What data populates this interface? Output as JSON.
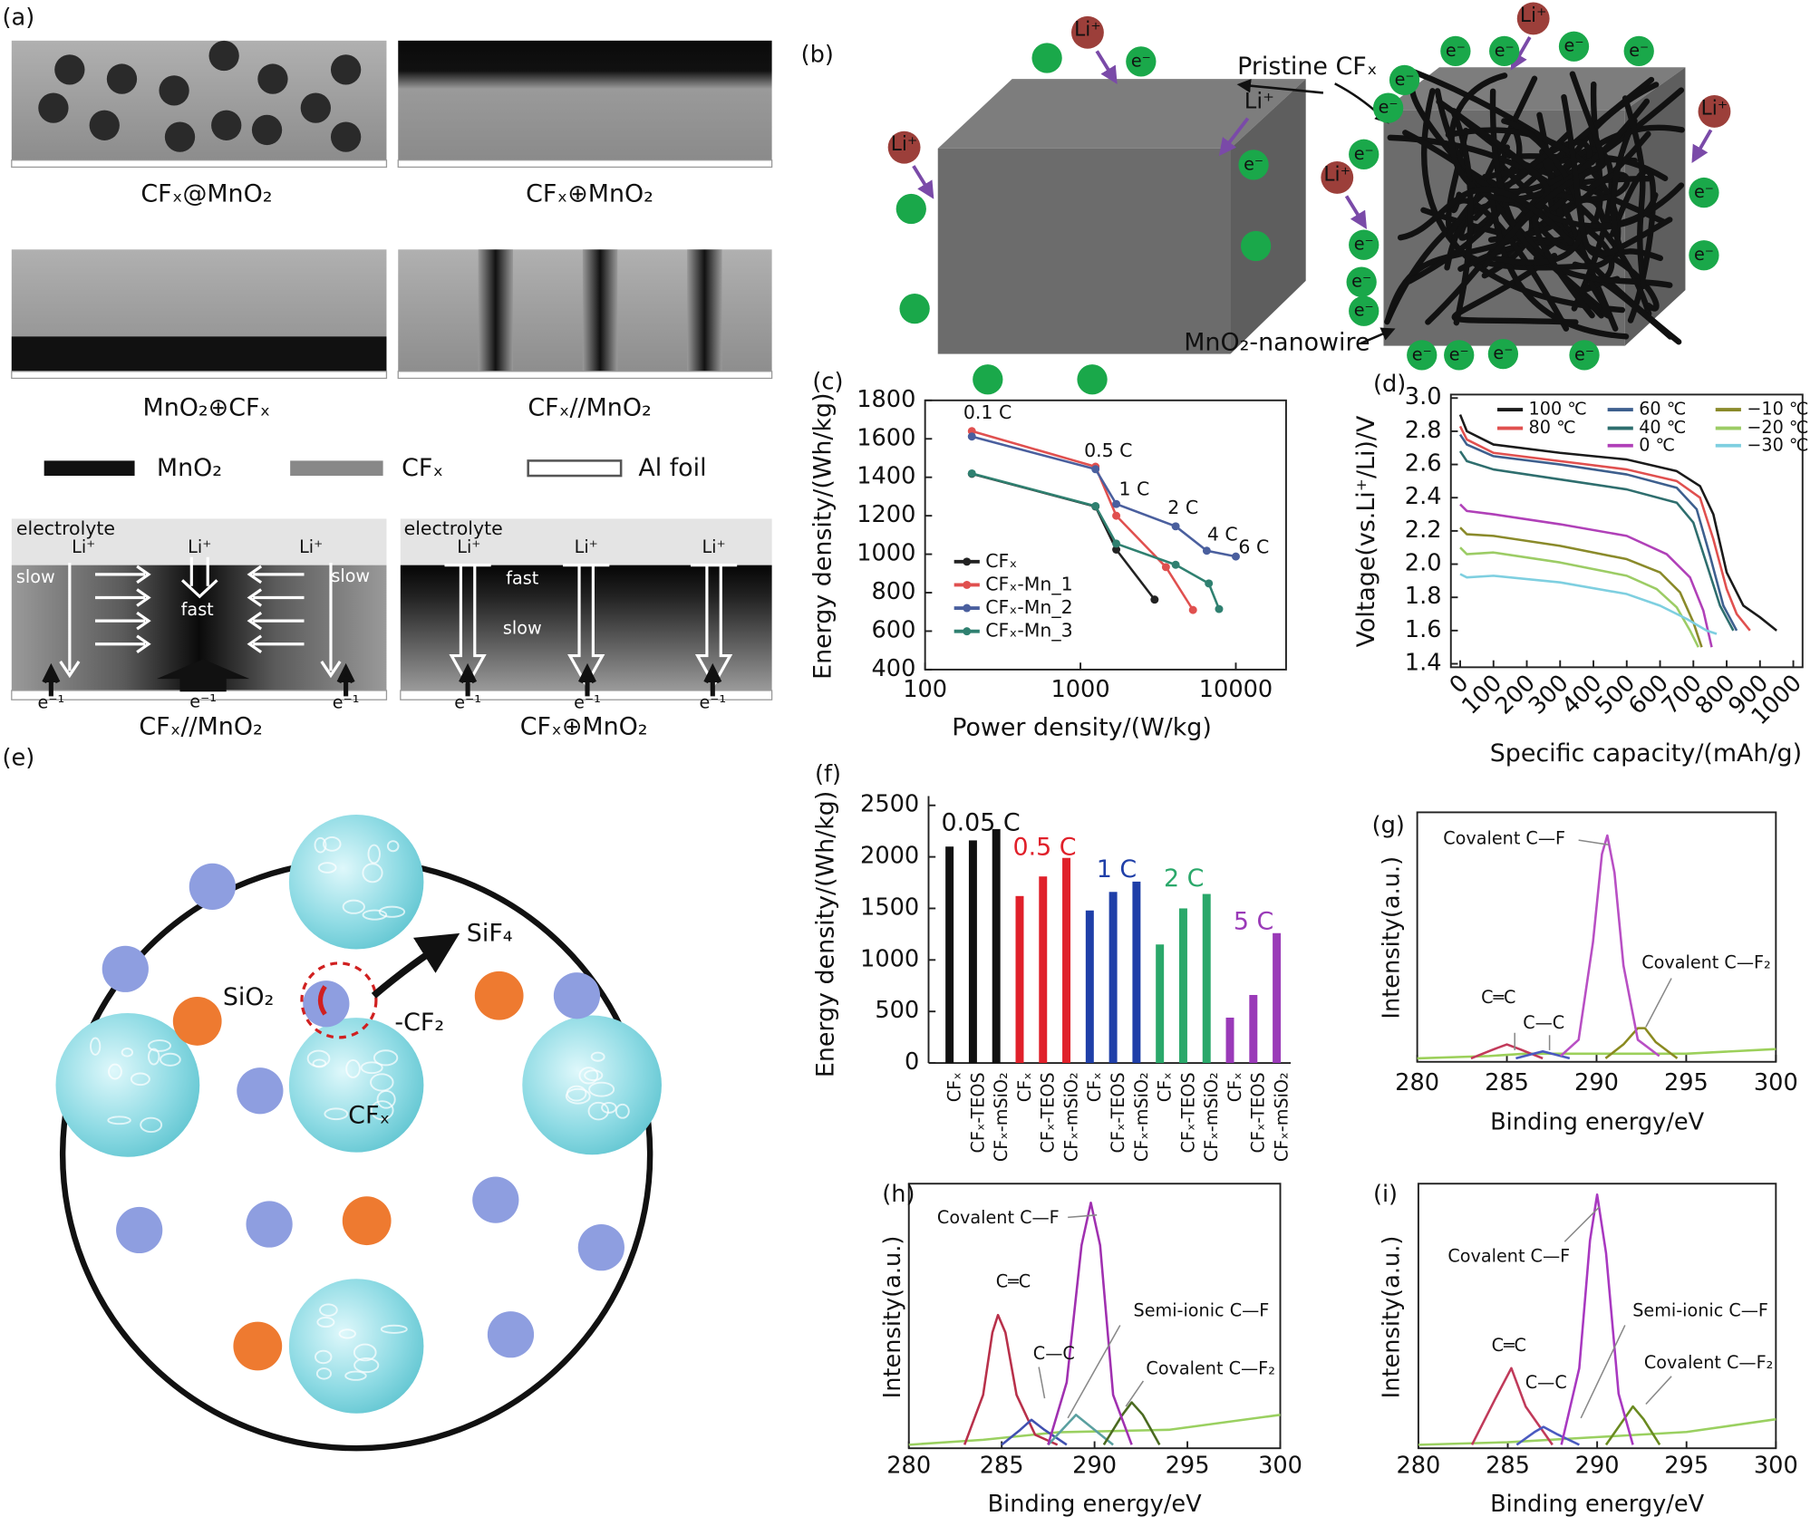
{
  "panels": {
    "a": {
      "label": "(a)",
      "captions": [
        "CFₓ@MnO₂",
        "CFₓ⊕MnO₂",
        "MnO₂⊕CFₓ",
        "CFₓ//MnO₂"
      ],
      "legend": [
        "MnO₂",
        "CFₓ",
        "Al foil"
      ],
      "left": {
        "texts": [
          "electrolyte",
          "Li⁺",
          "Li⁺",
          "Li⁺",
          "slow",
          "fast",
          "slow",
          "e⁻¹",
          "e⁻¹",
          "e⁻¹"
        ],
        "caption": "CFₓ//MnO₂"
      },
      "right": {
        "texts": [
          "electrolyte",
          "Li⁺",
          "Li⁺",
          "Li⁺",
          "fast",
          "slow",
          "e⁻¹",
          "e⁻¹",
          "e⁻¹"
        ],
        "caption": "CFₓ⊕MnO₂"
      }
    },
    "b": {
      "label": "(b)",
      "pristine": "Pristine CFₓ",
      "nanowire": "MnO₂-nanowire",
      "li_label": "Li⁺",
      "ions": [
        "Li⁺",
        "Li⁺",
        "Li⁺",
        "Li⁺",
        "Li⁺",
        "e⁻",
        "e⁻",
        "e⁻",
        "e⁻",
        "e⁻",
        "e⁻",
        "e⁻",
        "e⁻",
        "e⁻",
        "e⁻",
        "e⁻",
        "e⁻",
        "e⁻",
        "e⁻",
        "e⁻",
        "e⁻",
        "e⁻",
        "e⁻"
      ]
    },
    "e": {
      "label": "(e)",
      "texts": [
        "SiF₄",
        "SiO₂",
        "-CF₂",
        "CFₓ"
      ]
    }
  },
  "chart_data": [
    {
      "type": "line",
      "panel_label": "(c)",
      "x_label": "Power density/(W/kg)",
      "y_label": "Energy density/(Wh/kg)",
      "xscale": "log",
      "xlim": [
        100,
        20000
      ],
      "xticks": [
        100,
        1000,
        10000
      ],
      "ylim": [
        400,
        1800
      ],
      "yticks": [
        400,
        600,
        800,
        1000,
        1200,
        1400,
        1600,
        1800
      ],
      "markers": true,
      "legend": "lower left",
      "series": [
        {
          "name": "CFₓ",
          "color": "#222222",
          "x": [
            200,
            1250,
            1700,
            3000
          ],
          "values": [
            1418,
            1248,
            1024,
            764
          ]
        },
        {
          "name": "CFₓ-Mn_1",
          "color": "#e0504f",
          "x": [
            200,
            1250,
            1700,
            3550,
            5300
          ],
          "values": [
            1640,
            1455,
            1200,
            933,
            710
          ]
        },
        {
          "name": "CFₓ-Mn_2",
          "color": "#4a5f9e",
          "x": [
            200,
            1250,
            1700,
            4100,
            6500,
            10000
          ],
          "values": [
            1612,
            1442,
            1261,
            1145,
            1018,
            988
          ]
        },
        {
          "name": "CFₓ-Mn_3",
          "color": "#2f8070",
          "x": [
            200,
            1250,
            1700,
            4100,
            6700,
            7800
          ],
          "values": [
            1420,
            1250,
            1055,
            945,
            848,
            715
          ]
        }
      ],
      "annotations": [
        "0.1 C",
        "0.5 C",
        "1 C",
        "2 C",
        "4 C",
        "6 C"
      ]
    },
    {
      "type": "line",
      "panel_label": "(d)",
      "x_label": "Specific capacity/(mAh/g)",
      "y_label": "Voltage(vs.Li⁺/Li)/V",
      "xlim": [
        0,
        1000
      ],
      "xticks": [
        0,
        100,
        200,
        300,
        400,
        500,
        600,
        700,
        800,
        900,
        1000
      ],
      "ylim": [
        1.4,
        3.0
      ],
      "yticks": [
        1.4,
        1.6,
        1.8,
        {
          "value": 2,
          "label": "2.0"
        },
        2.2,
        2.4,
        2.6,
        2.8,
        {
          "value": 3,
          "label": "3.0"
        }
      ],
      "legend": "upper right",
      "series": [
        {
          "name": "100 ℃",
          "color": "#1a1a1a",
          "x": [
            0,
            20,
            100,
            300,
            500,
            650,
            720,
            760,
            800,
            850,
            900,
            950
          ],
          "values": [
            2.9,
            2.8,
            2.72,
            2.67,
            2.63,
            2.56,
            2.47,
            2.3,
            1.95,
            1.75,
            1.68,
            1.6
          ]
        },
        {
          "name": "80 ℃",
          "color": "#e0504f",
          "x": [
            0,
            20,
            100,
            300,
            500,
            650,
            720,
            760,
            800,
            830,
            870
          ],
          "values": [
            2.83,
            2.75,
            2.67,
            2.62,
            2.57,
            2.5,
            2.4,
            2.15,
            1.85,
            1.7,
            1.6
          ]
        },
        {
          "name": "60 ℃",
          "color": "#3d5f8e",
          "x": [
            0,
            20,
            100,
            300,
            500,
            650,
            710,
            750,
            790,
            830
          ],
          "values": [
            2.78,
            2.72,
            2.65,
            2.6,
            2.54,
            2.46,
            2.33,
            2.05,
            1.75,
            1.6
          ]
        },
        {
          "name": "40 ℃",
          "color": "#2e6e6e",
          "x": [
            0,
            20,
            100,
            300,
            500,
            650,
            700,
            740,
            780,
            820
          ],
          "values": [
            2.68,
            2.62,
            2.57,
            2.51,
            2.45,
            2.37,
            2.25,
            2.0,
            1.75,
            1.6
          ]
        },
        {
          "name": "0 ℃",
          "color": "#b040b8",
          "x": [
            0,
            20,
            100,
            300,
            500,
            620,
            690,
            730,
            755
          ],
          "values": [
            2.36,
            2.32,
            2.3,
            2.24,
            2.17,
            2.06,
            1.92,
            1.72,
            1.5
          ]
        },
        {
          "name": "−10 ℃",
          "color": "#8a8a2a",
          "x": [
            0,
            20,
            100,
            300,
            500,
            600,
            660,
            700,
            725
          ],
          "values": [
            2.22,
            2.18,
            2.17,
            2.11,
            2.03,
            1.95,
            1.83,
            1.65,
            1.5
          ]
        },
        {
          "name": "−20 ℃",
          "color": "#9ccc65",
          "x": [
            0,
            20,
            100,
            300,
            500,
            590,
            650,
            690,
            715
          ],
          "values": [
            2.1,
            2.06,
            2.07,
            2.01,
            1.93,
            1.85,
            1.74,
            1.6,
            1.5
          ]
        },
        {
          "name": "−30 ℃",
          "color": "#7ecfe0",
          "x": [
            0,
            20,
            100,
            300,
            500,
            600,
            680,
            740,
            770
          ],
          "values": [
            1.94,
            1.92,
            1.93,
            1.89,
            1.82,
            1.75,
            1.67,
            1.6,
            1.58
          ]
        }
      ]
    },
    {
      "type": "bar",
      "panel_label": "(f)",
      "y_label": "Energy density/(Wh/kg)",
      "ylim": [
        0,
        2500
      ],
      "yticks": [
        0,
        500,
        1000,
        1500,
        2000,
        2500
      ],
      "categories": [
        "CFₓ",
        "CFₓ-TEOS",
        "CFₓ-mSiO₂",
        "CFₓ",
        "CFₓ-TEOS",
        "CFₓ-mSiO₂",
        "CFₓ",
        "CFₓ-TEOS",
        "CFₓ-mSiO₂",
        "CFₓ",
        "CFₓ-TEOS",
        "CFₓ-mSiO₂",
        "CFₓ",
        "CFₓ-TEOS",
        "CFₓ-mSiO₂"
      ],
      "values": [
        2100,
        2160,
        2270,
        1620,
        1810,
        1990,
        1480,
        1660,
        1760,
        1150,
        1500,
        1640,
        440,
        660,
        1260
      ],
      "group_labels": [
        "0.05 C",
        "0.5 C",
        "1 C",
        "2 C",
        "5 C"
      ],
      "group_colors": [
        "#111111",
        "#e0202a",
        "#1f3fa8",
        "#2aa86a",
        "#9a3ab8"
      ]
    },
    {
      "type": "line",
      "panel_label": "(g)",
      "x_label": "Binding energy/eV",
      "y_label": "Intensity(a.u.)",
      "xlim": [
        280,
        300
      ],
      "xticks": [
        280,
        285,
        290,
        295,
        300
      ],
      "ylim": [
        0,
        100
      ],
      "series": [
        {
          "color": "#9cd05a",
          "x": [
            280,
            284,
            286,
            290,
            295,
            300
          ],
          "values": [
            0,
            1,
            2,
            2,
            2,
            4
          ]
        },
        {
          "color": "#c23a5a",
          "x": [
            283,
            284.3,
            285,
            285.7,
            287
          ],
          "values": [
            0,
            4,
            6,
            4,
            0
          ]
        },
        {
          "color": "#4a5ac0",
          "x": [
            285.5,
            286.5,
            287,
            287.5,
            288.5
          ],
          "values": [
            0,
            2,
            3,
            2,
            0
          ]
        },
        {
          "color": "#8a8a20",
          "x": [
            290.5,
            291.5,
            292.3,
            292.7,
            293.3,
            294.5
          ],
          "values": [
            0,
            6,
            13,
            13,
            7,
            0
          ]
        },
        {
          "color": "#b84fc4",
          "x": [
            288,
            289,
            289.8,
            290.3,
            290.6,
            291,
            291.5,
            292.3,
            293.5
          ],
          "values": [
            1,
            8,
            50,
            88,
            96,
            80,
            40,
            8,
            1
          ]
        }
      ],
      "annotations": [
        "Covalent C—F",
        "Covalent C—F₂",
        "C═C",
        "C—C"
      ]
    },
    {
      "type": "line",
      "panel_label": "(h)",
      "x_label": "Binding energy/eV",
      "y_label": "Intensity(a.u.)",
      "xlim": [
        280,
        300
      ],
      "xticks": [
        280,
        285,
        290,
        295,
        300
      ],
      "ylim": [
        0,
        100
      ],
      "series": [
        {
          "color": "#9ad060",
          "x": [
            280,
            284,
            288,
            294,
            300
          ],
          "values": [
            0,
            2,
            5,
            6,
            12
          ]
        },
        {
          "color": "#b8304a",
          "x": [
            283,
            284,
            284.5,
            284.8,
            285.2,
            285.8,
            286.8,
            288
          ],
          "values": [
            0,
            20,
            45,
            52,
            45,
            20,
            4,
            0
          ]
        },
        {
          "color": "#4050b0",
          "x": [
            285,
            286,
            286.6,
            287.3,
            288.5
          ],
          "values": [
            0,
            6,
            10,
            6,
            0
          ]
        },
        {
          "color": "#5aa0a0",
          "x": [
            287.5,
            288.5,
            289,
            290,
            291
          ],
          "values": [
            0,
            8,
            12,
            6,
            0
          ]
        },
        {
          "color": "#4a6a20",
          "x": [
            290.5,
            291.5,
            292,
            292.6,
            293.5
          ],
          "values": [
            0,
            12,
            17,
            12,
            0
          ]
        },
        {
          "color": "#a030b0",
          "x": [
            287.5,
            288.5,
            289.3,
            289.8,
            290.3,
            291,
            292
          ],
          "values": [
            0,
            25,
            80,
            97,
            80,
            20,
            0
          ]
        }
      ],
      "annotations": [
        "Covalent C—F",
        "C═C",
        "C—C",
        "Semi-ionic C—F",
        "Covalent C—F₂"
      ]
    },
    {
      "type": "line",
      "panel_label": "(i)",
      "x_label": "Binding energy/eV",
      "y_label": "Intensity(a.u.)",
      "xlim": [
        280,
        300
      ],
      "xticks": [
        280,
        285,
        290,
        295,
        300
      ],
      "ylim": [
        0,
        100
      ],
      "series": [
        {
          "color": "#9ad060",
          "x": [
            280,
            285,
            290,
            295,
            300
          ],
          "values": [
            0,
            1,
            3,
            5,
            10
          ]
        },
        {
          "color": "#c03a5a",
          "x": [
            283,
            284.3,
            285.2,
            286,
            287.5
          ],
          "values": [
            0,
            18,
            30,
            15,
            0
          ]
        },
        {
          "color": "#4a5ac0",
          "x": [
            285.5,
            286.5,
            287,
            287.8,
            289
          ],
          "values": [
            0,
            5,
            7,
            4,
            0
          ]
        },
        {
          "color": "#6a8a20",
          "x": [
            290.5,
            291.5,
            292,
            292.6,
            293.5
          ],
          "values": [
            0,
            10,
            15,
            10,
            0
          ]
        },
        {
          "color": "#a838c0",
          "x": [
            288,
            289,
            289.6,
            290,
            290.5,
            291.2,
            292
          ],
          "values": [
            0,
            30,
            80,
            98,
            75,
            20,
            0
          ]
        }
      ],
      "annotations": [
        "Covalent C—F",
        "C═C",
        "C—C",
        "Semi-ionic C—F",
        "Covalent C—F₂"
      ]
    }
  ]
}
